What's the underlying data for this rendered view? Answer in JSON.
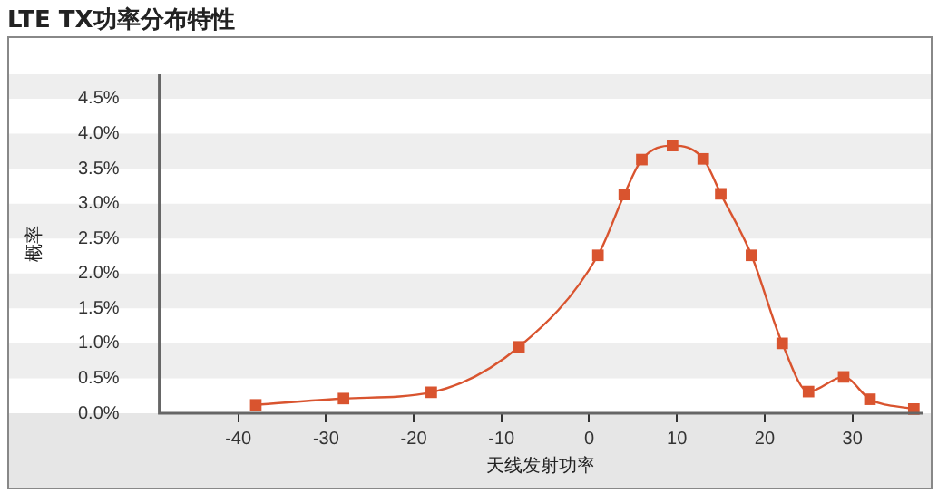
{
  "chart_data": {
    "type": "line",
    "title": "LTE TX功率分布特性",
    "xlabel": "天线发射功率",
    "ylabel": "概率",
    "x": [
      -38,
      -28,
      -18,
      -8,
      1,
      4,
      6,
      9.5,
      13,
      15,
      18.5,
      22,
      25,
      29,
      32,
      37
    ],
    "series": [
      {
        "color": "#d9542f",
        "values": [
          0.12,
          0.21,
          0.3,
          0.95,
          2.26,
          3.13,
          3.63,
          3.83,
          3.64,
          3.14,
          2.26,
          1.0,
          0.31,
          0.52,
          0.2,
          0.06
        ]
      }
    ],
    "xlim": [
      -49,
      38
    ],
    "xticks": [
      -40,
      -30,
      -20,
      -10,
      0,
      10,
      20,
      30
    ],
    "ylim": [
      0,
      4.85
    ],
    "yticks": [
      {
        "value": 0,
        "label": "0.0%"
      },
      {
        "value": 0.5,
        "label": "0.5%"
      },
      {
        "value": 1,
        "label": "1.0%"
      },
      {
        "value": 1.5,
        "label": "1.5%"
      },
      {
        "value": 2,
        "label": "2.0%"
      },
      {
        "value": 2.5,
        "label": "2.5%"
      },
      {
        "value": 3,
        "label": "3.0%"
      },
      {
        "value": 3.5,
        "label": "3.5%"
      },
      {
        "value": 4,
        "label": "4.0%"
      },
      {
        "value": 4.5,
        "label": "4.5%"
      }
    ],
    "marker": "square",
    "line_style": "solid",
    "legend": false
  }
}
